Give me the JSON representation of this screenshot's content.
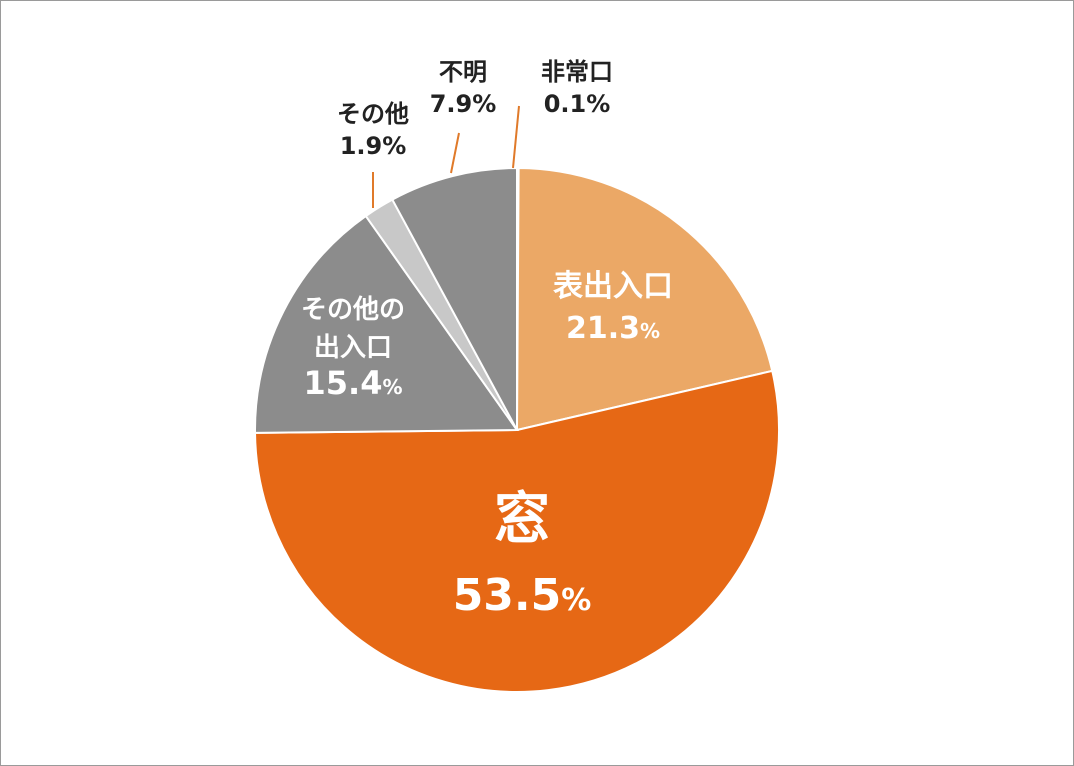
{
  "chart_data": {
    "type": "pie",
    "title": "",
    "start": "12 o'clock",
    "direction": "clockwise",
    "slices": [
      {
        "label": "非常口",
        "value": 0.1,
        "display": "0.1%",
        "color": "#f2d6bd",
        "label_position": "outside"
      },
      {
        "label": "表出入口",
        "value": 21.3,
        "display": "21.3",
        "color": "#eba866",
        "label_position": "inside"
      },
      {
        "label": "窓",
        "value": 53.5,
        "display": "53.5",
        "color": "#e66815",
        "label_position": "inside"
      },
      {
        "label": "その他の出入口",
        "label_lines": [
          "その他の",
          "出入口"
        ],
        "value": 15.4,
        "display": "15.4",
        "color": "#8c8c8c",
        "label_position": "inside"
      },
      {
        "label": "その他",
        "value": 1.9,
        "display": "1.9%",
        "color": "#c8c8c8",
        "label_position": "outside"
      },
      {
        "label": "不明",
        "value": 7.9,
        "display": "7.9%",
        "color": "#8c8c8c",
        "label_position": "outside"
      }
    ],
    "percent_sign": "%",
    "leader_line_color": "#e07a2a"
  }
}
